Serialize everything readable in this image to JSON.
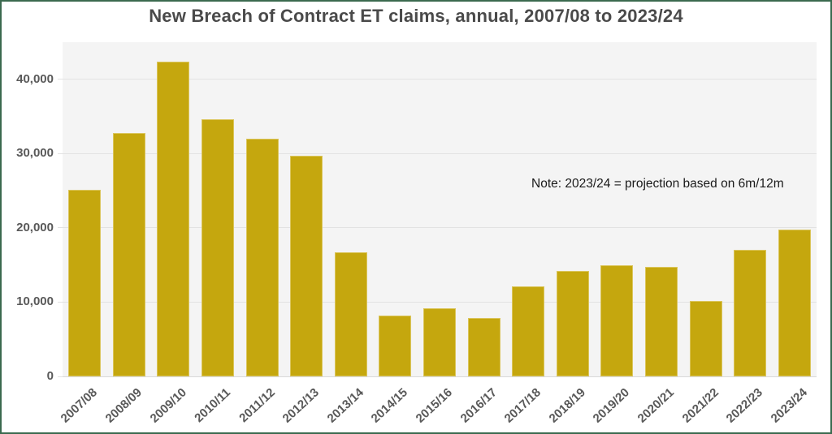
{
  "page": {
    "title": "New Breach of Contract ET claims, annual, 2007/08 to 2023/24",
    "note": "Note: 2023/24 = projection based on 6m/12m"
  },
  "colors": {
    "frame_border": "#3B6A4F",
    "title_text": "#4A4A4A",
    "plot_background": "#F4F4F4",
    "gridline": "#E2E2E2",
    "baseline": "#D8D8D8",
    "axis_label": "#595959",
    "note_text": "#1A1A1A",
    "bar_fill": "#C5A70E",
    "bar_border": "#DBC55C"
  },
  "chart_data": {
    "type": "bar",
    "title": "New Breach of Contract ET claims, annual, 2007/08 to 2023/24",
    "xlabel": "",
    "ylabel": "",
    "legend": "none",
    "grid": "horizontal",
    "annotation": "Note: 2023/24 = projection based on 6m/12m",
    "ylim": [
      0,
      45000
    ],
    "yticks": [
      {
        "value": 0,
        "label": "0"
      },
      {
        "value": 10000,
        "label": "10,000"
      },
      {
        "value": 20000,
        "label": "20,000"
      },
      {
        "value": 30000,
        "label": "30,000"
      },
      {
        "value": 40000,
        "label": "40,000"
      }
    ],
    "categories": [
      "2007/08",
      "2008/09",
      "2009/10",
      "2010/11",
      "2011/12",
      "2012/13",
      "2013/14",
      "2014/15",
      "2015/16",
      "2016/17",
      "2017/18",
      "2018/19",
      "2019/20",
      "2020/21",
      "2021/22",
      "2022/23",
      "2023/24"
    ],
    "values": [
      25100,
      32800,
      42400,
      34600,
      32000,
      29700,
      16700,
      8200,
      9200,
      7900,
      12100,
      14200,
      15000,
      14800,
      10200,
      17000,
      19800
    ]
  }
}
